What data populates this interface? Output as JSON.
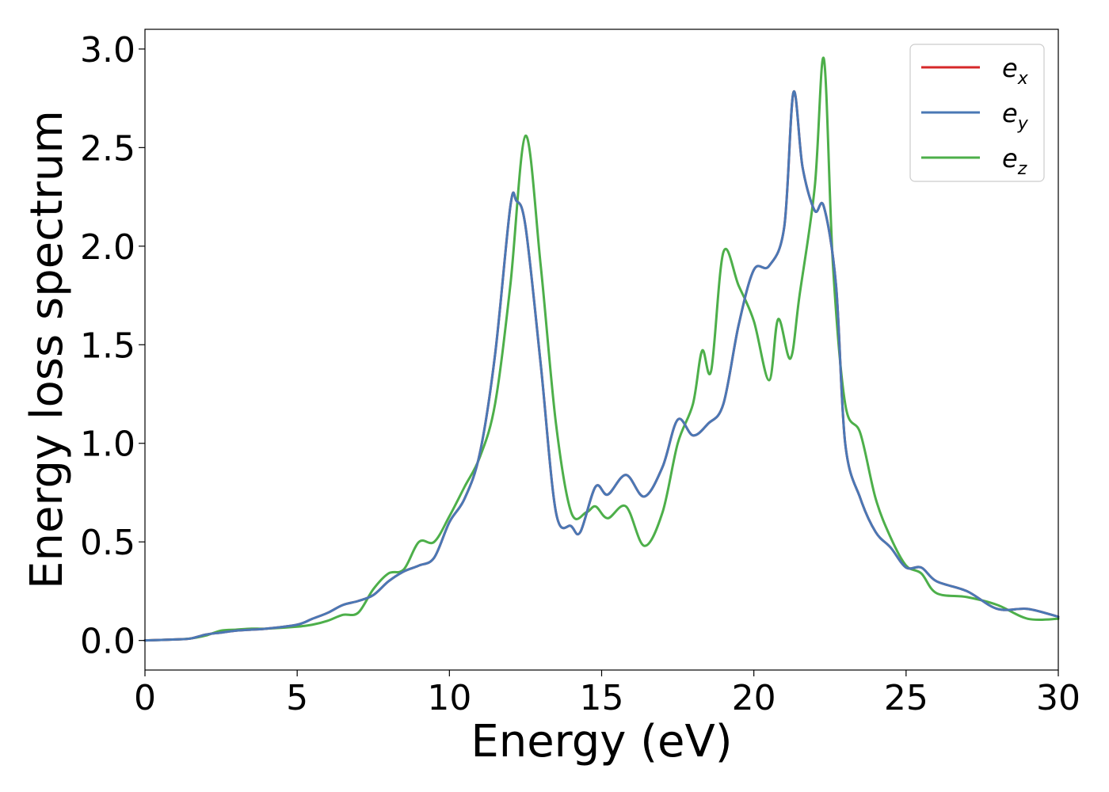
{
  "chart_data": {
    "type": "line",
    "xlabel": "Energy (eV)",
    "ylabel": "Energy loss spectrum",
    "xlim": [
      0,
      30
    ],
    "ylim": [
      -0.15,
      3.1
    ],
    "xticks": [
      "0",
      "5",
      "10",
      "15",
      "20",
      "25",
      "30"
    ],
    "yticks": [
      "0.0",
      "0.5",
      "1.0",
      "1.5",
      "2.0",
      "2.5",
      "3.0"
    ],
    "grid": false,
    "legend_position": "top-right",
    "series": [
      {
        "name": "e_x",
        "label_base": "e",
        "label_sub": "x",
        "color": "#d62728",
        "x": [
          0,
          1,
          1.5,
          2,
          2.5,
          3,
          3.5,
          4,
          5,
          5.5,
          6,
          6.5,
          7,
          7.5,
          8,
          8.5,
          9,
          9.5,
          10,
          10.5,
          11,
          11.5,
          12,
          12.2,
          12.5,
          13,
          13.5,
          14,
          14.3,
          14.8,
          15.2,
          15.8,
          16.4,
          17,
          17.5,
          18,
          18.5,
          19,
          19.5,
          20,
          20.5,
          21,
          21.3,
          21.6,
          22,
          22.3,
          22.7,
          23,
          23.5,
          24,
          24.5,
          25,
          25.5,
          26,
          27,
          28,
          29,
          30
        ],
        "y": [
          0,
          0.005,
          0.01,
          0.03,
          0.04,
          0.05,
          0.055,
          0.06,
          0.08,
          0.11,
          0.14,
          0.18,
          0.2,
          0.23,
          0.3,
          0.35,
          0.38,
          0.42,
          0.6,
          0.72,
          0.95,
          1.45,
          2.2,
          2.23,
          2.1,
          1.4,
          0.65,
          0.58,
          0.55,
          0.78,
          0.74,
          0.84,
          0.73,
          0.88,
          1.12,
          1.04,
          1.1,
          1.2,
          1.6,
          1.88,
          1.9,
          2.1,
          2.78,
          2.4,
          2.18,
          2.2,
          1.8,
          1.0,
          0.72,
          0.55,
          0.47,
          0.37,
          0.37,
          0.3,
          0.25,
          0.16,
          0.16,
          0.12
        ]
      },
      {
        "name": "e_y",
        "label_base": "e",
        "label_sub": "y",
        "color": "#4a78b5",
        "x": [
          0,
          1,
          1.5,
          2,
          2.5,
          3,
          3.5,
          4,
          5,
          5.5,
          6,
          6.5,
          7,
          7.5,
          8,
          8.5,
          9,
          9.5,
          10,
          10.5,
          11,
          11.5,
          12,
          12.2,
          12.5,
          13,
          13.5,
          14,
          14.3,
          14.8,
          15.2,
          15.8,
          16.4,
          17,
          17.5,
          18,
          18.5,
          19,
          19.5,
          20,
          20.5,
          21,
          21.3,
          21.6,
          22,
          22.3,
          22.7,
          23,
          23.5,
          24,
          24.5,
          25,
          25.5,
          26,
          27,
          28,
          29,
          30
        ],
        "y": [
          0,
          0.005,
          0.01,
          0.03,
          0.04,
          0.05,
          0.055,
          0.06,
          0.08,
          0.11,
          0.14,
          0.18,
          0.2,
          0.23,
          0.3,
          0.35,
          0.38,
          0.42,
          0.6,
          0.72,
          0.95,
          1.45,
          2.2,
          2.23,
          2.1,
          1.4,
          0.65,
          0.58,
          0.55,
          0.78,
          0.74,
          0.84,
          0.73,
          0.88,
          1.12,
          1.04,
          1.1,
          1.2,
          1.6,
          1.88,
          1.9,
          2.1,
          2.78,
          2.4,
          2.18,
          2.2,
          1.8,
          1.0,
          0.72,
          0.55,
          0.47,
          0.37,
          0.37,
          0.3,
          0.25,
          0.16,
          0.16,
          0.12
        ]
      },
      {
        "name": "e_z",
        "label_base": "e",
        "label_sub": "z",
        "color": "#4daf4a",
        "x": [
          0,
          1,
          1.5,
          2,
          2.5,
          3,
          3.5,
          4,
          5,
          5.5,
          6,
          6.5,
          7,
          7.5,
          8,
          8.5,
          9,
          9.5,
          10,
          10.5,
          11,
          11.5,
          12,
          12.5,
          13,
          13.5,
          14,
          14.5,
          14.8,
          15.2,
          15.8,
          16.4,
          17,
          17.5,
          18,
          18.3,
          18.6,
          19,
          19.5,
          20,
          20.5,
          20.8,
          21.2,
          21.5,
          22,
          22.3,
          22.6,
          23,
          23.5,
          24,
          24.5,
          25,
          25.5,
          26,
          27,
          28,
          29,
          30
        ],
        "y": [
          0,
          0.005,
          0.01,
          0.025,
          0.05,
          0.055,
          0.06,
          0.06,
          0.07,
          0.08,
          0.1,
          0.13,
          0.14,
          0.26,
          0.34,
          0.36,
          0.5,
          0.5,
          0.63,
          0.78,
          0.93,
          1.2,
          1.8,
          2.56,
          1.9,
          1.1,
          0.65,
          0.65,
          0.68,
          0.62,
          0.68,
          0.48,
          0.65,
          1.0,
          1.2,
          1.47,
          1.37,
          1.97,
          1.8,
          1.62,
          1.32,
          1.63,
          1.43,
          1.75,
          2.3,
          2.95,
          1.9,
          1.2,
          1.05,
          0.72,
          0.52,
          0.38,
          0.34,
          0.24,
          0.22,
          0.18,
          0.11,
          0.11
        ]
      }
    ]
  }
}
